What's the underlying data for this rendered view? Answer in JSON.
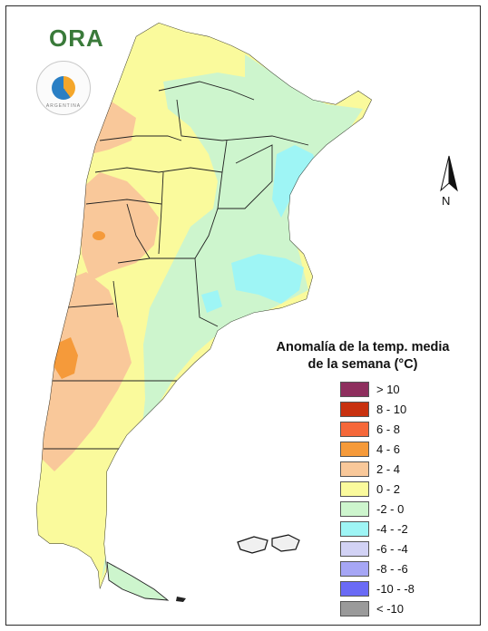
{
  "logo": {
    "text": "ORA",
    "badge_text": "ARGENTINA"
  },
  "compass": {
    "letter": "N"
  },
  "legend": {
    "title_line1": "Anomalía de la temp. media",
    "title_line2": "de la semana (°C)",
    "items": [
      {
        "label": "> 10",
        "color": "#8e2f5e"
      },
      {
        "label": "8 - 10",
        "color": "#c8310f"
      },
      {
        "label": "6 - 8",
        "color": "#f5683a"
      },
      {
        "label": "4 - 6",
        "color": "#f59a3a"
      },
      {
        "label": "2 - 4",
        "color": "#f9c89a"
      },
      {
        "label": "0 - 2",
        "color": "#fafa9c"
      },
      {
        "label": "-2 - 0",
        "color": "#cdf5cd"
      },
      {
        "label": "-4 - -2",
        "color": "#9ef5f5"
      },
      {
        "label": "-6 - -4",
        "color": "#d2d2f5"
      },
      {
        "label": "-8 - -6",
        "color": "#a6a6f5"
      },
      {
        "label": "-10 - -8",
        "color": "#6a6af5"
      },
      {
        "label": "< -10",
        "color": "#9a9a9a"
      }
    ]
  }
}
